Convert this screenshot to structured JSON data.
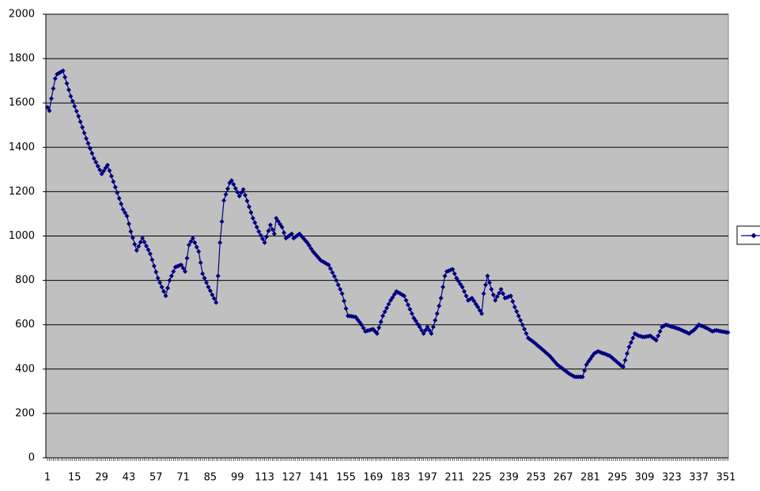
{
  "chart_data": {
    "type": "line",
    "categories": [
      "1",
      null,
      null,
      null,
      null,
      null,
      null,
      null,
      null,
      null,
      null,
      null,
      null,
      null,
      "15",
      null,
      null,
      null,
      null,
      null,
      null,
      null,
      null,
      null,
      null,
      null,
      null,
      null,
      "29",
      null,
      null,
      null,
      null,
      null,
      null,
      null,
      null,
      null,
      null,
      null,
      null,
      null,
      "43",
      null,
      null,
      null,
      null,
      null,
      null,
      null,
      null,
      null,
      null,
      null,
      null,
      null,
      "57",
      null,
      null,
      null,
      null,
      null,
      null,
      null,
      null,
      null,
      null,
      null,
      null,
      null,
      "71",
      null,
      null,
      null,
      null,
      null,
      null,
      null,
      null,
      null,
      null,
      null,
      null,
      null,
      "85",
      null,
      null,
      null,
      null,
      null,
      null,
      null,
      null,
      null,
      null,
      null,
      null,
      null,
      "99",
      null,
      null,
      null,
      null,
      null,
      null,
      null,
      null,
      null,
      null,
      null,
      null,
      null,
      "113",
      null,
      null,
      null,
      null,
      null,
      null,
      null,
      null,
      null,
      null,
      null,
      null,
      null,
      "127",
      null,
      null,
      null,
      null,
      null,
      null,
      null,
      null,
      null,
      null,
      null,
      null,
      null,
      "141",
      null,
      null,
      null,
      null,
      null,
      null,
      null,
      null,
      null,
      null,
      null,
      null,
      null,
      "155",
      null,
      null,
      null,
      null,
      null,
      null,
      null,
      null,
      null,
      null,
      null,
      null,
      null,
      "169",
      null,
      null,
      null,
      null,
      null,
      null,
      null,
      null,
      null,
      null,
      null,
      null,
      null,
      "183",
      null,
      null,
      null,
      null,
      null,
      null,
      null,
      null,
      null,
      null,
      null,
      null,
      null,
      "197",
      null,
      null,
      null,
      null,
      null,
      null,
      null,
      null,
      null,
      null,
      null,
      null,
      null,
      "211",
      null,
      null,
      null,
      null,
      null,
      null,
      null,
      null,
      null,
      null,
      null,
      null,
      null,
      "225",
      null,
      null,
      null,
      null,
      null,
      null,
      null,
      null,
      null,
      null,
      null,
      null,
      null,
      "239",
      null,
      null,
      null,
      null,
      null,
      null,
      null,
      null,
      null,
      null,
      null,
      null,
      null,
      "253",
      null,
      null,
      null,
      null,
      null,
      null,
      null,
      null,
      null,
      null,
      null,
      null,
      null,
      "267",
      null,
      null,
      null,
      null,
      null,
      null,
      null,
      null,
      null,
      null,
      null,
      null,
      null,
      "281",
      null,
      null,
      null,
      null,
      null,
      null,
      null,
      null,
      null,
      null,
      null,
      null,
      null,
      "295",
      null,
      null,
      null,
      null,
      null,
      null,
      null,
      null,
      null,
      null,
      null,
      null,
      null,
      "309",
      null,
      null,
      null,
      null,
      null,
      null,
      null,
      null,
      null,
      null,
      null,
      null,
      null,
      "323",
      null,
      null,
      null,
      null,
      null,
      null,
      null,
      null,
      null,
      null,
      null,
      null,
      null,
      "337",
      null,
      null,
      null,
      null,
      null,
      null,
      null,
      null,
      null,
      null,
      null,
      null,
      null,
      "351",
      null
    ],
    "series": [
      {
        "color": "#000080",
        "values": [
          1580,
          1565,
          1620,
          1665,
          1710,
          1730,
          1735,
          1740,
          1745,
          1716,
          1688,
          1659,
          1630,
          1608,
          1585,
          1563,
          1540,
          1515,
          1490,
          1465,
          1440,
          1418,
          1395,
          1373,
          1350,
          1333,
          1315,
          1298,
          1280,
          1293,
          1307,
          1320,
          1295,
          1270,
          1245,
          1220,
          1195,
          1170,
          1145,
          1120,
          1105,
          1090,
          1055,
          1020,
          992,
          963,
          935,
          953,
          972,
          990,
          973,
          955,
          938,
          920,
          893,
          865,
          838,
          810,
          790,
          770,
          750,
          730,
          765,
          800,
          820,
          840,
          860,
          863,
          867,
          870,
          855,
          840,
          900,
          960,
          975,
          990,
          970,
          950,
          930,
          880,
          830,
          810,
          790,
          770,
          753,
          735,
          718,
          700,
          820,
          970,
          1065,
          1160,
          1187,
          1213,
          1240,
          1250,
          1233,
          1215,
          1198,
          1180,
          1195,
          1210,
          1184,
          1158,
          1132,
          1106,
          1080,
          1060,
          1040,
          1020,
          1003,
          987,
          970,
          997,
          1023,
          1050,
          1030,
          1010,
          1080,
          1067,
          1053,
          1040,
          1015,
          990,
          997,
          1003,
          1010,
          990,
          997,
          1003,
          1010,
          1000,
          990,
          980,
          970,
          957,
          943,
          930,
          920,
          910,
          900,
          890,
          885,
          880,
          875,
          870,
          853,
          835,
          818,
          800,
          780,
          760,
          740,
          707,
          673,
          640,
          639,
          638,
          636,
          635,
          623,
          612,
          600,
          585,
          570,
          573,
          575,
          578,
          580,
          570,
          560,
          587,
          613,
          640,
          658,
          675,
          693,
          710,
          723,
          737,
          750,
          745,
          740,
          735,
          730,
          710,
          690,
          670,
          650,
          630,
          617,
          603,
          590,
          575,
          560,
          575,
          590,
          575,
          560,
          590,
          620,
          650,
          685,
          720,
          770,
          820,
          840,
          843,
          847,
          850,
          830,
          810,
          797,
          783,
          770,
          750,
          730,
          710,
          715,
          720,
          707,
          693,
          680,
          665,
          650,
          740,
          780,
          820,
          790,
          760,
          735,
          710,
          727,
          743,
          760,
          740,
          720,
          723,
          727,
          730,
          705,
          680,
          660,
          640,
          620,
          600,
          580,
          560,
          540,
          533,
          527,
          520,
          513,
          505,
          498,
          490,
          483,
          475,
          468,
          460,
          450,
          440,
          430,
          420,
          413,
          407,
          400,
          393,
          387,
          380,
          375,
          370,
          365,
          365,
          365,
          365,
          365,
          393,
          420,
          433,
          445,
          458,
          470,
          475,
          480,
          477,
          473,
          470,
          467,
          463,
          460,
          453,
          445,
          438,
          430,
          423,
          415,
          410,
          440,
          470,
          500,
          520,
          540,
          560,
          555,
          550,
          548,
          545,
          545,
          547,
          548,
          550,
          543,
          537,
          530,
          550,
          570,
          590,
          595,
          600,
          597,
          594,
          591,
          589,
          586,
          583,
          580,
          576,
          572,
          568,
          564,
          560,
          567,
          573,
          580,
          590,
          600,
          596,
          593,
          589,
          585,
          580,
          575,
          570,
          573,
          575,
          573,
          571,
          569,
          568,
          566,
          565
        ]
      }
    ],
    "ylim": [
      0,
      2000
    ],
    "yticks": [
      0,
      200,
      400,
      600,
      800,
      1000,
      1200,
      1400,
      1600,
      1800,
      2000
    ],
    "grid": true,
    "legend": "right",
    "background": "#c0c0c0"
  }
}
